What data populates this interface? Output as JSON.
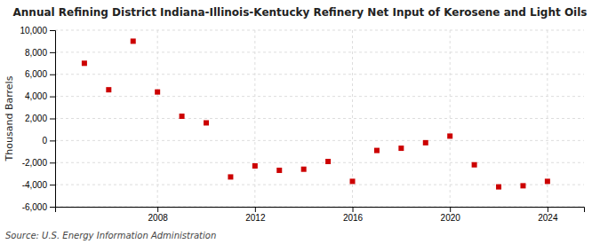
{
  "chart_data": {
    "type": "scatter",
    "title": "Annual Refining District Indiana-Illinois-Kentucky Refinery Net Input of Kerosene and Light Oils",
    "y_label": "Thousand Barrels",
    "source": "Source: U.S. Energy Information Administration",
    "x": [
      2005,
      2006,
      2007,
      2008,
      2009,
      2010,
      2011,
      2012,
      2013,
      2014,
      2015,
      2016,
      2017,
      2018,
      2019,
      2020,
      2021,
      2022,
      2023,
      2024
    ],
    "values": [
      7000,
      4600,
      9000,
      4400,
      2200,
      1600,
      -3300,
      -2300,
      -2700,
      -2600,
      -1900,
      -3700,
      -900,
      -700,
      -200,
      400,
      -2200,
      -4200,
      -4100,
      -3700
    ],
    "color": "#cc0000",
    "marker": "square",
    "grid": true,
    "xlim": [
      2003.8,
      2025.5
    ],
    "xticks": [
      2008,
      2012,
      2016,
      2020,
      2024
    ],
    "ylim": [
      -6000,
      10000
    ],
    "yticks": [
      {
        "value": -6000,
        "label": "-6,000"
      },
      {
        "value": -4000,
        "label": "-4,000"
      },
      {
        "value": -2000,
        "label": "-2,000"
      },
      0,
      {
        "value": 2000,
        "label": "2,000"
      },
      {
        "value": 4000,
        "label": "4,000"
      },
      {
        "value": 6000,
        "label": "6,000"
      },
      {
        "value": 8000,
        "label": "8,000"
      },
      {
        "value": 10000,
        "label": "10,000"
      }
    ]
  }
}
